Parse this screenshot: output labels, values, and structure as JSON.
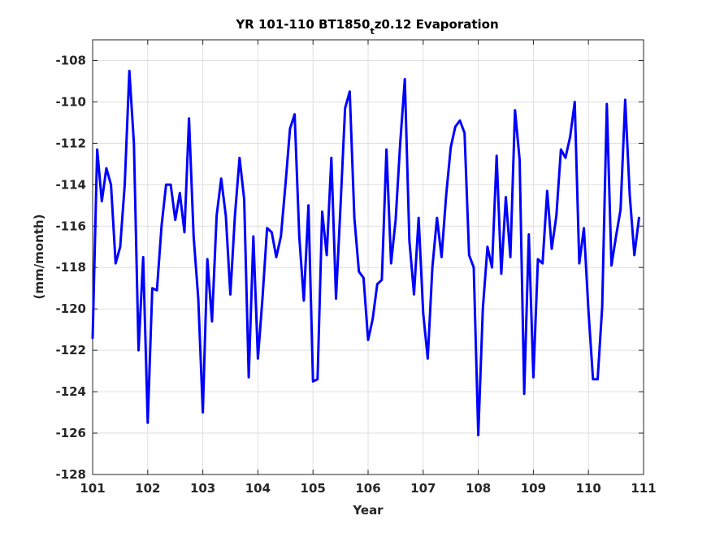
{
  "chart_data": {
    "type": "line",
    "title_main": "YR 101-110 BT1850",
    "title_sub": "t",
    "title_rest": "z0.12 Evaporation",
    "xlabel": "Year",
    "ylabel": "(mm/month)",
    "xlim": [
      101,
      111
    ],
    "ylim": [
      -128,
      -107
    ],
    "xticks": [
      101,
      102,
      103,
      104,
      105,
      106,
      107,
      108,
      109,
      110,
      111
    ],
    "yticks": [
      -128,
      -126,
      -124,
      -122,
      -120,
      -118,
      -116,
      -114,
      -112,
      -110,
      -108
    ],
    "xtick_labels": [
      "101",
      "102",
      "103",
      "104",
      "105",
      "106",
      "107",
      "108",
      "109",
      "110",
      "111"
    ],
    "ytick_labels": [
      "-128",
      "-126",
      "-124",
      "-122",
      "-120",
      "-118",
      "-116",
      "-114",
      "-112",
      "-110",
      "-108"
    ],
    "grid": true,
    "series": [
      {
        "color": "#0000ff",
        "x": [
          101.0,
          101.083,
          101.167,
          101.25,
          101.333,
          101.417,
          101.5,
          101.583,
          101.667,
          101.75,
          101.833,
          101.917,
          102.0,
          102.083,
          102.167,
          102.25,
          102.333,
          102.417,
          102.5,
          102.583,
          102.667,
          102.75,
          102.833,
          102.917,
          103.0,
          103.083,
          103.167,
          103.25,
          103.333,
          103.417,
          103.5,
          103.583,
          103.667,
          103.75,
          103.833,
          103.917,
          104.0,
          104.083,
          104.167,
          104.25,
          104.333,
          104.417,
          104.5,
          104.583,
          104.667,
          104.75,
          104.833,
          104.917,
          105.0,
          105.083,
          105.167,
          105.25,
          105.333,
          105.417,
          105.5,
          105.583,
          105.667,
          105.75,
          105.833,
          105.917,
          106.0,
          106.083,
          106.167,
          106.25,
          106.333,
          106.417,
          106.5,
          106.583,
          106.667,
          106.75,
          106.833,
          106.917,
          107.0,
          107.083,
          107.167,
          107.25,
          107.333,
          107.417,
          107.5,
          107.583,
          107.667,
          107.75,
          107.833,
          107.917,
          108.0,
          108.083,
          108.167,
          108.25,
          108.333,
          108.417,
          108.5,
          108.583,
          108.667,
          108.75,
          108.833,
          108.917,
          109.0,
          109.083,
          109.167,
          109.25,
          109.333,
          109.417,
          109.5,
          109.583,
          109.667,
          109.75,
          109.833,
          109.917,
          110.0,
          110.083,
          110.167,
          110.25,
          110.333,
          110.417,
          110.5,
          110.583,
          110.667,
          110.75,
          110.833,
          110.917
        ],
        "values": [
          -121.4,
          -112.3,
          -114.8,
          -113.2,
          -114.0,
          -117.8,
          -117.0,
          -114.0,
          -108.5,
          -112.0,
          -122.0,
          -117.5,
          -125.5,
          -119.0,
          -119.1,
          -116.0,
          -114.0,
          -114.0,
          -115.7,
          -114.4,
          -116.3,
          -110.8,
          -116.5,
          -119.5,
          -125.0,
          -117.6,
          -120.6,
          -115.5,
          -113.7,
          -115.5,
          -119.3,
          -115.5,
          -112.7,
          -114.7,
          -123.3,
          -116.5,
          -122.4,
          -119.5,
          -116.1,
          -116.3,
          -117.5,
          -116.5,
          -114.0,
          -111.3,
          -110.6,
          -116.5,
          -119.6,
          -115.0,
          -123.5,
          -123.4,
          -115.3,
          -117.4,
          -112.7,
          -119.5,
          -115.0,
          -110.3,
          -109.5,
          -115.6,
          -118.2,
          -118.5,
          -121.5,
          -120.5,
          -118.8,
          -118.6,
          -112.3,
          -117.8,
          -115.7,
          -112.0,
          -108.9,
          -116.7,
          -119.3,
          -115.6,
          -120.2,
          -122.4,
          -118.0,
          -115.6,
          -117.5,
          -114.5,
          -112.2,
          -111.2,
          -110.9,
          -111.5,
          -117.4,
          -118.0,
          -126.1,
          -120.0,
          -117.0,
          -118.0,
          -112.6,
          -118.3,
          -114.6,
          -117.5,
          -110.4,
          -112.8,
          -124.1,
          -116.4,
          -123.3,
          -117.6,
          -117.8,
          -114.3,
          -117.1,
          -115.5,
          -112.3,
          -112.7,
          -111.7,
          -110.0,
          -117.8,
          -116.1,
          -120.1,
          -123.4,
          -123.4,
          -119.9,
          -110.1,
          -117.9,
          -116.5,
          -115.2,
          -109.9,
          -114.5,
          -117.4,
          -115.6
        ]
      }
    ]
  }
}
